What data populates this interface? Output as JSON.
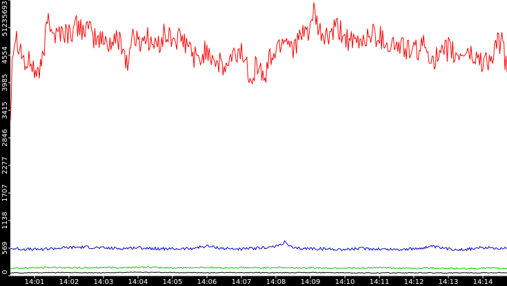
{
  "chart_data": {
    "type": "line",
    "title": "",
    "xlabel": "",
    "ylabel": "",
    "ylim": [
      0,
      5693
    ],
    "xlim_minutes": [
      0.3,
      14.7
    ],
    "grid": false,
    "legend": "none",
    "y_ticks": [
      "0",
      "569",
      "1138",
      "1707",
      "2277",
      "2846",
      "3415",
      "3985",
      "4554",
      "5123",
      "5693"
    ],
    "x_ticks": [
      {
        "minute": 1,
        "label": "14:01"
      },
      {
        "minute": 2,
        "label": "14:02"
      },
      {
        "minute": 3,
        "label": "14:03"
      },
      {
        "minute": 4,
        "label": "14:04"
      },
      {
        "minute": 5,
        "label": "14:05"
      },
      {
        "minute": 6,
        "label": "14:06"
      },
      {
        "minute": 7,
        "label": "14:07"
      },
      {
        "minute": 8,
        "label": "14:08"
      },
      {
        "minute": 9,
        "label": "14:09"
      },
      {
        "minute": 10,
        "label": "14:10"
      },
      {
        "minute": 11,
        "label": "14:11"
      },
      {
        "minute": 12,
        "label": "14:12"
      },
      {
        "minute": 13,
        "label": "14:13"
      },
      {
        "minute": 14,
        "label": "14:14"
      }
    ],
    "series": [
      {
        "color": "#ff0000",
        "x": [
          0.3,
          0.35,
          0.45,
          0.6,
          0.75,
          0.9,
          1.0,
          1.2,
          1.4,
          1.6,
          1.75,
          2.0,
          2.25,
          2.5,
          2.75,
          3.0,
          3.25,
          3.5,
          3.7,
          3.85,
          4.0,
          4.25,
          4.5,
          4.75,
          5.0,
          5.25,
          5.5,
          5.75,
          6.0,
          6.25,
          6.5,
          6.75,
          7.0,
          7.25,
          7.5,
          7.65,
          7.8,
          8.0,
          8.25,
          8.5,
          8.75,
          9.0,
          9.1,
          9.25,
          9.5,
          9.75,
          10.0,
          10.25,
          10.5,
          10.75,
          11.0,
          11.25,
          11.5,
          11.75,
          12.0,
          12.25,
          12.5,
          12.75,
          13.0,
          13.25,
          13.5,
          13.75,
          14.0,
          14.25,
          14.4,
          14.55,
          14.7
        ],
        "values": [
          3250,
          4550,
          5000,
          4700,
          4300,
          4450,
          4200,
          4250,
          5400,
          4950,
          5050,
          5000,
          5150,
          5100,
          4900,
          4850,
          4800,
          4900,
          4350,
          5000,
          4800,
          4950,
          4700,
          4950,
          4900,
          4850,
          4700,
          4400,
          4700,
          4450,
          4250,
          4500,
          4650,
          4150,
          4400,
          4000,
          4450,
          4650,
          4950,
          4750,
          4900,
          5150,
          5400,
          5000,
          4900,
          5100,
          4950,
          4750,
          4850,
          5000,
          4950,
          4800,
          4750,
          4700,
          4600,
          4750,
          4550,
          4450,
          4700,
          4500,
          4650,
          4500,
          4450,
          4450,
          4750,
          4850,
          4200
        ]
      },
      {
        "color": "#0000cc",
        "x": [
          0.3,
          1.0,
          1.5,
          2.0,
          2.5,
          3.0,
          3.5,
          4.0,
          4.5,
          5.0,
          5.5,
          6.0,
          6.5,
          7.0,
          7.5,
          8.0,
          8.25,
          8.5,
          9.0,
          9.5,
          10.0,
          10.5,
          11.0,
          11.5,
          12.0,
          12.5,
          13.0,
          13.5,
          14.0,
          14.5,
          14.7
        ],
        "values": [
          560,
          540,
          560,
          580,
          590,
          570,
          560,
          580,
          560,
          550,
          560,
          610,
          560,
          550,
          570,
          600,
          690,
          560,
          560,
          550,
          540,
          560,
          550,
          540,
          550,
          600,
          550,
          540,
          580,
          570,
          560
        ]
      },
      {
        "color": "#00cc00",
        "x": [
          0.3,
          1.0,
          1.5,
          2.0,
          2.5,
          3.0,
          3.5,
          4.0,
          4.5,
          5.0,
          5.5,
          6.0,
          6.5,
          7.0,
          7.5,
          8.0,
          8.5,
          9.0,
          9.5,
          10.0,
          10.5,
          11.0,
          11.5,
          12.0,
          12.5,
          13.0,
          13.5,
          14.0,
          14.5,
          14.7
        ],
        "values": [
          150,
          160,
          170,
          165,
          160,
          170,
          165,
          175,
          170,
          160,
          165,
          170,
          160,
          165,
          160,
          170,
          160,
          165,
          155,
          160,
          150,
          170,
          155,
          150,
          160,
          150,
          145,
          155,
          150,
          150
        ]
      },
      {
        "color": "#000000",
        "x": [
          0.3,
          1.0,
          2.0,
          3.0,
          4.0,
          5.0,
          6.0,
          7.0,
          8.0,
          9.0,
          10.0,
          11.0,
          12.0,
          13.0,
          14.0,
          14.7
        ],
        "values": [
          55,
          60,
          65,
          60,
          70,
          65,
          60,
          65,
          60,
          65,
          60,
          55,
          60,
          55,
          60,
          60
        ]
      }
    ]
  }
}
